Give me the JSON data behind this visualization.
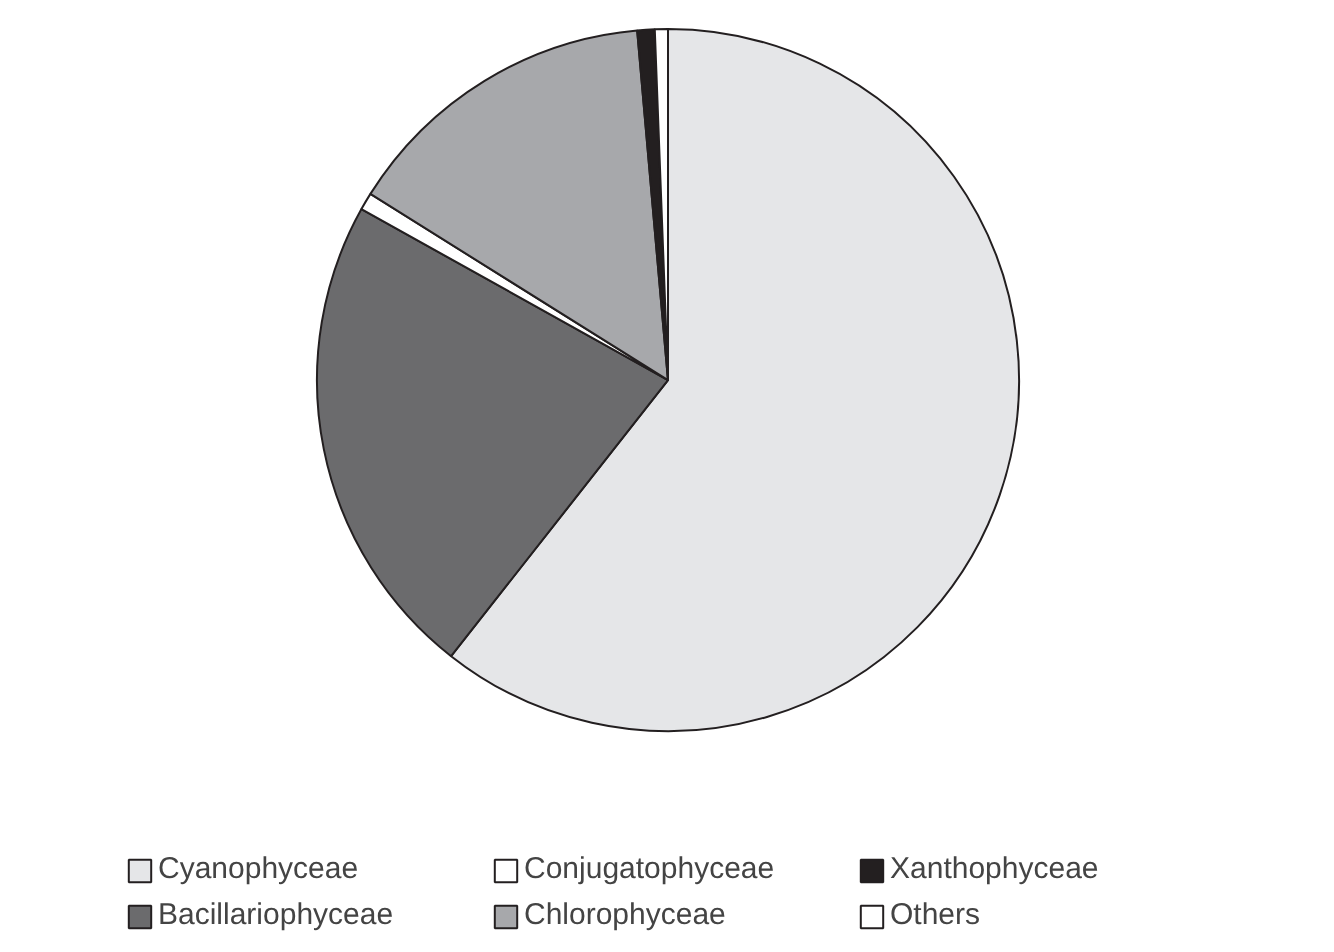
{
  "chart_data": {
    "type": "pie",
    "categories": [
      "Cyanophyceae",
      "Bacillariophyceae",
      "Conjugatophyceae",
      "Chlorophyceae",
      "Xanthophyceae",
      "Others"
    ],
    "values": [
      60.6,
      22.5,
      0.8,
      14.7,
      0.8,
      0.6
    ],
    "colors": [
      "#e5e6e8",
      "#6b6b6d",
      "#ffffff",
      "#a7a8ab",
      "#231f20",
      "#ffffff"
    ],
    "legend": "bottom"
  }
}
